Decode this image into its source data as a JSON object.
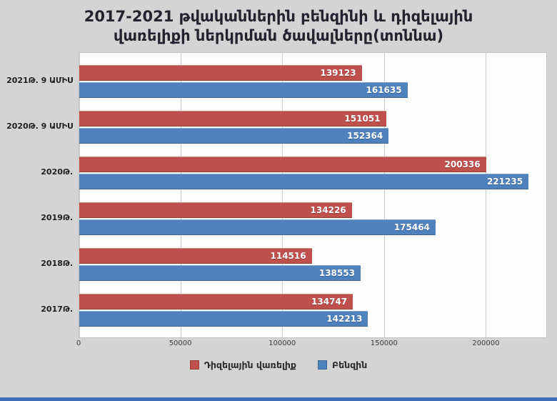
{
  "title": "2017-2021 թվականներին բենզինի և դիզելային վառելիքի ներկրման ծավալները(տոննա)",
  "colors": {
    "background": "#d4d4d4",
    "plot_background": "#fdfdfd",
    "gridline": "#cccccc",
    "diesel_red": "#c0504d",
    "benzin_blue": "#4f81bd",
    "bottom_strip_blue": "#3c6fb7"
  },
  "chart_data": {
    "type": "bar",
    "orientation": "horizontal",
    "title": "2017-2021 թվականներին բենզինի և դիզելային վառելիքի ներկրման ծավալները(տոննա)",
    "categories": [
      "2021Թ. 9 ԱՄԻՍ",
      "2020Թ. 9 ԱՄԻՍ",
      "2020Թ.",
      "2019Թ.",
      "2018Թ.",
      "2017Թ."
    ],
    "series": [
      {
        "name": "Դիզելային վառելիք",
        "key": "diesel",
        "color": "#c0504d",
        "values": [
          139123,
          151051,
          200336,
          134226,
          114516,
          134747
        ]
      },
      {
        "name": "Բենզին",
        "key": "benzin",
        "color": "#4f81bd",
        "values": [
          161635,
          152364,
          221235,
          175464,
          138553,
          142213
        ]
      }
    ],
    "x_ticks": [
      0,
      50000,
      100000,
      150000,
      200000
    ],
    "x_max": 230000,
    "xlabel": "",
    "ylabel": "",
    "grid": true,
    "legend_position": "bottom",
    "value_labels": "inside-end, white bold"
  }
}
